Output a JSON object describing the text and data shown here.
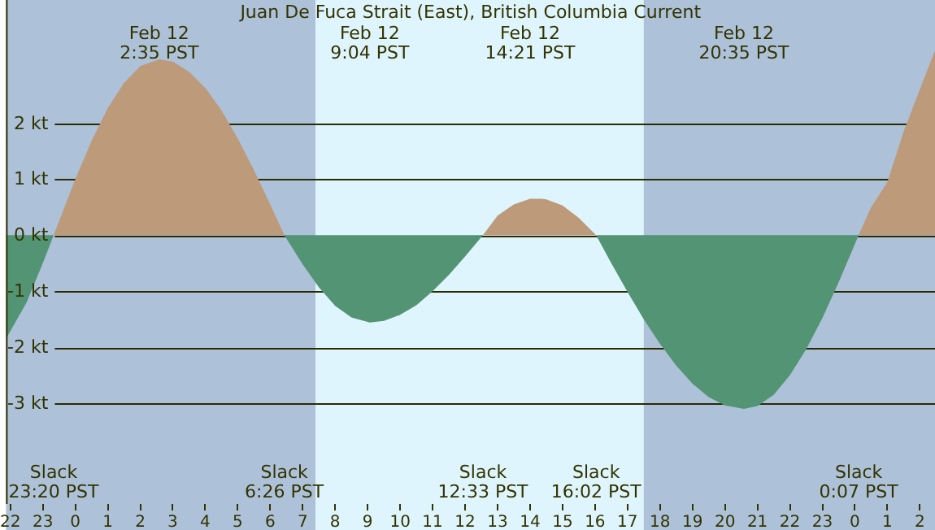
{
  "chart_data": {
    "type": "area",
    "title": "Juan De Fuca Strait (East), British Columbia Current",
    "x": [
      "--02-11T21:52",
      "--02-11T22:30",
      "--02-11T23:00",
      "--02-11T23:20",
      "--02-12T00:00",
      "--02-12T00:30",
      "--02-12T01:00",
      "--02-12T01:30",
      "--02-12T02:00",
      "--02-12T02:35",
      "--02-12T03:00",
      "--02-12T03:30",
      "--02-12T04:00",
      "--02-12T04:30",
      "--02-12T05:00",
      "--02-12T05:30",
      "--02-12T06:00",
      "--02-12T06:26",
      "--02-12T07:00",
      "--02-12T07:30",
      "--02-12T08:00",
      "--02-12T08:30",
      "--02-12T09:04",
      "--02-12T09:30",
      "--02-12T10:00",
      "--02-12T10:30",
      "--02-12T11:00",
      "--02-12T11:30",
      "--02-12T12:00",
      "--02-12T12:33",
      "--02-12T13:00",
      "--02-12T13:30",
      "--02-12T14:00",
      "--02-12T14:21",
      "--02-12T14:30",
      "--02-12T15:00",
      "--02-12T15:30",
      "--02-12T16:02",
      "--02-12T16:30",
      "--02-12T17:00",
      "--02-12T17:30",
      "--02-12T18:00",
      "--02-12T18:30",
      "--02-12T19:00",
      "--02-12T19:30",
      "--02-12T20:00",
      "--02-12T20:35",
      "--02-12T21:00",
      "--02-12T21:30",
      "--02-12T22:00",
      "--02-12T22:30",
      "--02-12T23:00",
      "--02-12T23:30",
      "--02-13T00:07",
      "--02-13T00:30",
      "--02-13T01:00",
      "--02-13T01:30",
      "--02-13T02:00",
      "--02-13T02:28"
    ],
    "series": [
      {
        "color": "#bc9a7a",
        "values": [
          null,
          null,
          null,
          0,
          1.0,
          1.68,
          2.27,
          2.72,
          3.02,
          3.14,
          3.1,
          2.92,
          2.63,
          2.23,
          1.73,
          1.16,
          0.55,
          0,
          null,
          null,
          null,
          null,
          null,
          null,
          null,
          null,
          null,
          null,
          null,
          0,
          0.35,
          0.55,
          0.65,
          0.65,
          0.64,
          0.53,
          0.31,
          0,
          null,
          null,
          null,
          null,
          null,
          null,
          null,
          null,
          null,
          null,
          null,
          null,
          null,
          null,
          null,
          0,
          0.5,
          0.95,
          1.85,
          2.6,
          3.3
        ]
      },
      {
        "color": "#529473",
        "values": [
          -1.85,
          -1.2,
          -0.5,
          0,
          null,
          null,
          null,
          null,
          null,
          null,
          null,
          null,
          null,
          null,
          null,
          null,
          null,
          0,
          -0.52,
          -0.93,
          -1.26,
          -1.47,
          -1.56,
          -1.53,
          -1.42,
          -1.25,
          -1.0,
          -0.71,
          -0.38,
          0,
          null,
          null,
          null,
          null,
          null,
          null,
          null,
          0,
          -0.5,
          -1.01,
          -1.5,
          -1.94,
          -2.33,
          -2.65,
          -2.89,
          -3.04,
          -3.1,
          -3.05,
          -2.85,
          -2.5,
          -2.04,
          -1.48,
          -0.84,
          0,
          null,
          null,
          null,
          null,
          null
        ]
      }
    ],
    "xlim": [
      "--02-11T21:52",
      "--02-13T02:28"
    ],
    "xticks": [
      {
        "value": "--02-11T22:00",
        "label": "22"
      },
      {
        "value": "--02-11T23:00",
        "label": "23"
      },
      {
        "value": "--02-12T00:00",
        "label": "0"
      },
      {
        "value": "--02-12T01:00",
        "label": "1"
      },
      {
        "value": "--02-12T02:00",
        "label": "2"
      },
      {
        "value": "--02-12T03:00",
        "label": "3"
      },
      {
        "value": "--02-12T04:00",
        "label": "4"
      },
      {
        "value": "--02-12T05:00",
        "label": "5"
      },
      {
        "value": "--02-12T06:00",
        "label": "6"
      },
      {
        "value": "--02-12T07:00",
        "label": "7"
      },
      {
        "value": "--02-12T08:00",
        "label": "8"
      },
      {
        "value": "--02-12T09:00",
        "label": "9"
      },
      {
        "value": "--02-12T10:00",
        "label": "10"
      },
      {
        "value": "--02-12T11:00",
        "label": "11"
      },
      {
        "value": "--02-12T12:00",
        "label": "12"
      },
      {
        "value": "--02-12T13:00",
        "label": "13"
      },
      {
        "value": "--02-12T14:00",
        "label": "14"
      },
      {
        "value": "--02-12T15:00",
        "label": "15"
      },
      {
        "value": "--02-12T16:00",
        "label": "16"
      },
      {
        "value": "--02-12T17:00",
        "label": "17"
      },
      {
        "value": "--02-12T18:00",
        "label": "18"
      },
      {
        "value": "--02-12T19:00",
        "label": "19"
      },
      {
        "value": "--02-12T20:00",
        "label": "20"
      },
      {
        "value": "--02-12T21:00",
        "label": "21"
      },
      {
        "value": "--02-12T22:00",
        "label": "22"
      },
      {
        "value": "--02-12T23:00",
        "label": "23"
      },
      {
        "value": "--02-13T00:00",
        "label": "0"
      },
      {
        "value": "--02-13T01:00",
        "label": "1"
      },
      {
        "value": "--02-13T02:00",
        "label": "2"
      }
    ],
    "ylim": [
      -4.8,
      4.2
    ],
    "yticks": [
      {
        "value": -3,
        "label": "-3 kt"
      },
      {
        "value": -2,
        "label": "-2 kt"
      },
      {
        "value": -1,
        "label": "-1 kt"
      },
      {
        "value": 0,
        "label": "0 kt"
      },
      {
        "value": 1,
        "label": "1 kt"
      },
      {
        "value": 2,
        "label": "2 kt"
      }
    ],
    "grid": "y",
    "bands": [
      {
        "axis": "x",
        "from": "--02-11T21:52",
        "to": "--02-12T07:24",
        "color": "#adc1d8"
      },
      {
        "axis": "x",
        "from": "--02-12T07:24",
        "to": "--02-12T17:30",
        "color": "#dff5fd"
      },
      {
        "axis": "x",
        "from": "--02-12T17:30",
        "to": "--02-13T02:28",
        "color": "#adc1d8"
      }
    ],
    "annotations": [
      "Slack\n23:20 PST",
      "Feb 12\n2:35 PST",
      "Slack\n6:26 PST",
      "Feb 12\n9:04 PST",
      "Slack\n12:33 PST",
      "Feb 12\n14:21 PST",
      "Slack\n16:02 PST",
      "Feb 12\n20:35 PST",
      "Slack\n0:07 PST"
    ]
  }
}
